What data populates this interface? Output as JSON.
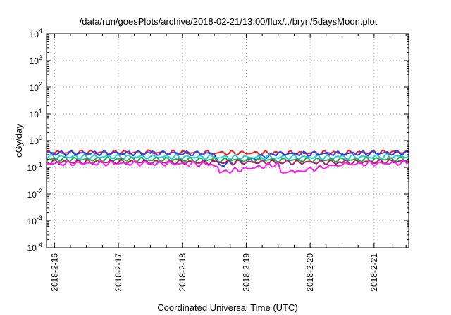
{
  "chart_data": {
    "type": "line",
    "title": "/data/run/goesPlots/archive/2018-02-21/13:00/flux/../bryn/5daysMoon.plot",
    "xlabel": "Coordinated Universal Time (UTC)",
    "ylabel": "cGy/day",
    "yscale": "log",
    "ylim": [
      0.0001,
      10000
    ],
    "y_ticks": [
      {
        "base": "10",
        "exp": "-4",
        "value": 0.0001
      },
      {
        "base": "10",
        "exp": "-3",
        "value": 0.001
      },
      {
        "base": "10",
        "exp": "-2",
        "value": 0.01
      },
      {
        "base": "10",
        "exp": "-1",
        "value": 0.1
      },
      {
        "base": "10",
        "exp": "0",
        "value": 1
      },
      {
        "base": "10",
        "exp": "1",
        "value": 10
      },
      {
        "base": "10",
        "exp": "2",
        "value": 100
      },
      {
        "base": "10",
        "exp": "3",
        "value": 1000
      },
      {
        "base": "10",
        "exp": "4",
        "value": 10000
      }
    ],
    "xlim": [
      "2018-02-15 21:00",
      "2018-02-21 13:00"
    ],
    "x_ticks": [
      "2018-2-16",
      "2018-2-17",
      "2018-2-18",
      "2018-2-19",
      "2018-2-20",
      "2018-2-21"
    ],
    "x_tick_dates": [
      "2018-02-16",
      "2018-02-17",
      "2018-02-18",
      "2018-02-19",
      "2018-02-20",
      "2018-02-21"
    ],
    "grid": true,
    "series": [
      {
        "color": "#ff1a1a",
        "values": [
          {
            "x": "2018-02-15 21:00",
            "y": 0.36
          },
          {
            "x": "2018-02-16 12:00",
            "y": 0.36
          },
          {
            "x": "2018-02-17 12:00",
            "y": 0.36
          },
          {
            "x": "2018-02-18 12:00",
            "y": 0.35
          },
          {
            "x": "2018-02-19 12:00",
            "y": 0.34
          },
          {
            "x": "2018-02-20 12:00",
            "y": 0.35
          },
          {
            "x": "2018-02-21 13:00",
            "y": 0.37
          }
        ]
      },
      {
        "color": "#2244ee",
        "values": [
          {
            "x": "2018-02-15 21:00",
            "y": 0.34
          },
          {
            "x": "2018-02-16 12:00",
            "y": 0.34
          },
          {
            "x": "2018-02-17 12:00",
            "y": 0.34
          },
          {
            "x": "2018-02-18 12:00",
            "y": 0.33
          },
          {
            "x": "2018-02-18 14:00",
            "y": 0.12
          },
          {
            "x": "2018-02-19 12:00",
            "y": 0.32
          },
          {
            "x": "2018-02-20 12:00",
            "y": 0.33
          },
          {
            "x": "2018-02-21 13:00",
            "y": 0.35
          }
        ]
      },
      {
        "color": "#22ccdd",
        "values": [
          {
            "x": "2018-02-15 21:00",
            "y": 0.25
          },
          {
            "x": "2018-02-16 12:00",
            "y": 0.25
          },
          {
            "x": "2018-02-17 12:00",
            "y": 0.25
          },
          {
            "x": "2018-02-18 12:00",
            "y": 0.24
          },
          {
            "x": "2018-02-19 12:00",
            "y": 0.24
          },
          {
            "x": "2018-02-20 12:00",
            "y": 0.24
          },
          {
            "x": "2018-02-21 13:00",
            "y": 0.26
          }
        ]
      },
      {
        "color": "#22aa44",
        "values": [
          {
            "x": "2018-02-15 21:00",
            "y": 0.2
          },
          {
            "x": "2018-02-16 12:00",
            "y": 0.2
          },
          {
            "x": "2018-02-17 12:00",
            "y": 0.2
          },
          {
            "x": "2018-02-18 12:00",
            "y": 0.19
          },
          {
            "x": "2018-02-19 12:00",
            "y": 0.19
          },
          {
            "x": "2018-02-20 12:00",
            "y": 0.19
          },
          {
            "x": "2018-02-21 13:00",
            "y": 0.21
          }
        ]
      },
      {
        "color": "#aa2266",
        "values": [
          {
            "x": "2018-02-15 21:00",
            "y": 0.16
          },
          {
            "x": "2018-02-16 12:00",
            "y": 0.16
          },
          {
            "x": "2018-02-17 12:00",
            "y": 0.16
          },
          {
            "x": "2018-02-18 12:00",
            "y": 0.155
          },
          {
            "x": "2018-02-19 12:00",
            "y": 0.155
          },
          {
            "x": "2018-02-20 12:00",
            "y": 0.155
          },
          {
            "x": "2018-02-21 13:00",
            "y": 0.17
          }
        ]
      },
      {
        "color": "#ff22ee",
        "values": [
          {
            "x": "2018-02-15 21:00",
            "y": 0.14
          },
          {
            "x": "2018-02-16 12:00",
            "y": 0.14
          },
          {
            "x": "2018-02-17 12:00",
            "y": 0.14
          },
          {
            "x": "2018-02-18 12:00",
            "y": 0.13
          },
          {
            "x": "2018-02-18 14:00",
            "y": 0.065
          },
          {
            "x": "2018-02-19 12:00",
            "y": 0.13
          },
          {
            "x": "2018-02-19 13:00",
            "y": 0.065
          },
          {
            "x": "2018-02-19 19:00",
            "y": 0.07
          },
          {
            "x": "2018-02-20 12:00",
            "y": 0.13
          },
          {
            "x": "2018-02-21 13:00",
            "y": 0.15
          }
        ]
      }
    ]
  }
}
